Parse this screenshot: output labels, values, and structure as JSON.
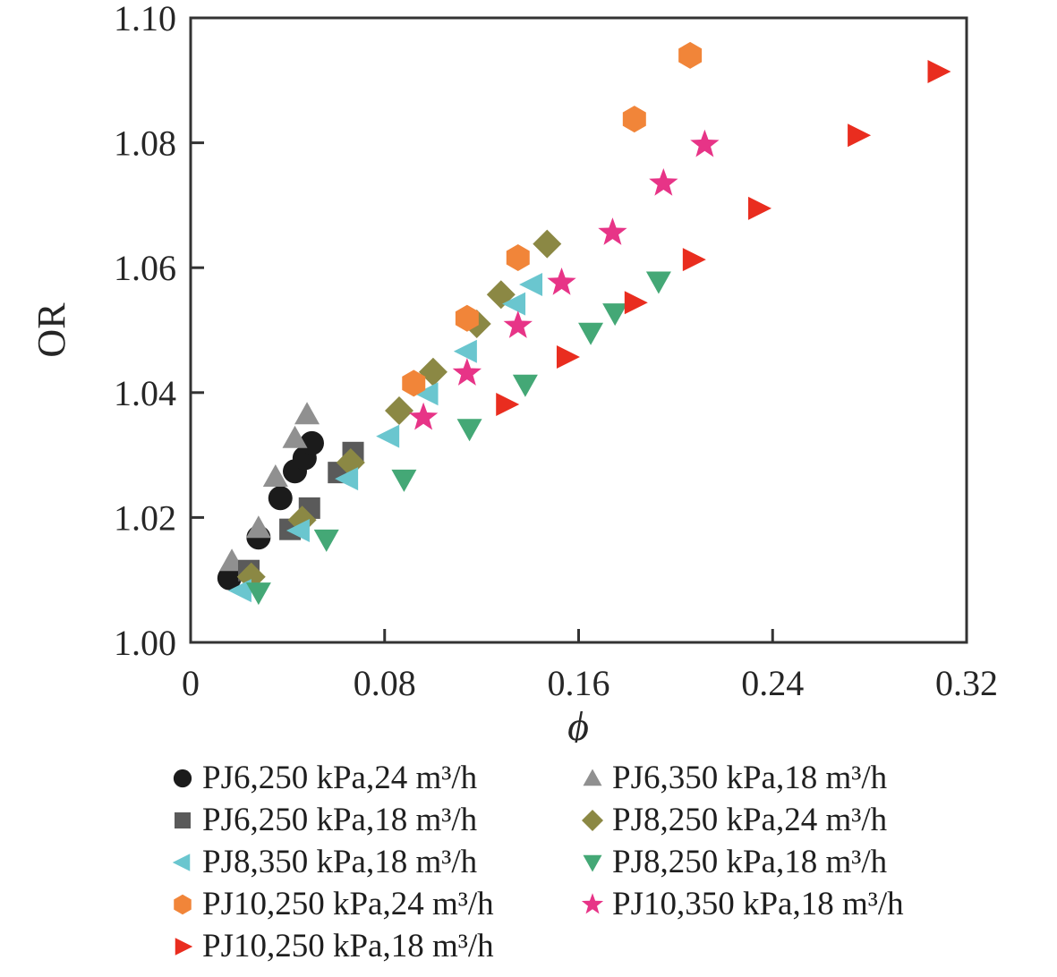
{
  "chart_data": {
    "type": "scatter",
    "title": "",
    "xlabel": "ϕ",
    "ylabel": "OR",
    "xlim": [
      0,
      0.32
    ],
    "ylim": [
      1.0,
      1.1
    ],
    "xticks": [
      0,
      0.08,
      0.16,
      0.24,
      0.32
    ],
    "xtick_labels": [
      "0",
      "0.08",
      "0.16",
      "0.24",
      "0.32"
    ],
    "yticks": [
      1.0,
      1.02,
      1.04,
      1.06,
      1.08,
      1.1
    ],
    "ytick_labels": [
      "1.00",
      "1.02",
      "1.04",
      "1.06",
      "1.08",
      "1.10"
    ],
    "grid": false,
    "legend_position": "below-two-columns",
    "frame_color": "#333333",
    "series": [
      {
        "name": "PJ6,250 kPa,24 m³/h",
        "marker": "circle",
        "color": "#1b1b1b",
        "points": [
          [
            0.016,
            1.0103
          ],
          [
            0.028,
            1.0168
          ],
          [
            0.037,
            1.0231
          ],
          [
            0.043,
            1.0274
          ],
          [
            0.047,
            1.0295
          ],
          [
            0.05,
            1.0319
          ]
        ]
      },
      {
        "name": "PJ6,350 kPa,18 m³/h",
        "marker": "triangle-up",
        "color": "#909090",
        "points": [
          [
            0.017,
            1.013
          ],
          [
            0.028,
            1.0183
          ],
          [
            0.035,
            1.0265
          ],
          [
            0.043,
            1.0327
          ],
          [
            0.048,
            1.0365
          ]
        ]
      },
      {
        "name": "PJ6,250 kPa,18 m³/h",
        "marker": "square",
        "color": "#5a5a5a",
        "points": [
          [
            0.024,
            1.0115
          ],
          [
            0.041,
            1.0181
          ],
          [
            0.049,
            1.0215
          ],
          [
            0.061,
            1.0272
          ],
          [
            0.067,
            1.0304
          ]
        ]
      },
      {
        "name": "PJ8,250 kPa,24 m³/h",
        "marker": "diamond",
        "color": "#8b8844",
        "points": [
          [
            0.025,
            1.0105
          ],
          [
            0.046,
            1.0196
          ],
          [
            0.066,
            1.0288
          ],
          [
            0.086,
            1.0371
          ],
          [
            0.1,
            1.0433
          ],
          [
            0.118,
            1.051
          ],
          [
            0.128,
            1.0557
          ],
          [
            0.147,
            1.0638
          ]
        ]
      },
      {
        "name": "PJ8,350 kPa,18 m³/h",
        "marker": "triangle-left",
        "color": "#6ac6cf",
        "points": [
          [
            0.021,
            1.0083
          ],
          [
            0.045,
            1.0179
          ],
          [
            0.065,
            1.0262
          ],
          [
            0.082,
            1.033
          ],
          [
            0.098,
            1.0398
          ],
          [
            0.114,
            1.0466
          ],
          [
            0.134,
            1.0542
          ],
          [
            0.141,
            1.0573
          ]
        ]
      },
      {
        "name": "PJ8,250 kPa,18 m³/h",
        "marker": "triangle-down",
        "color": "#44a876",
        "points": [
          [
            0.028,
            1.008
          ],
          [
            0.056,
            1.0165
          ],
          [
            0.088,
            1.0261
          ],
          [
            0.115,
            1.0342
          ],
          [
            0.138,
            1.0413
          ],
          [
            0.165,
            1.0496
          ],
          [
            0.175,
            1.0527
          ],
          [
            0.193,
            1.0578
          ]
        ]
      },
      {
        "name": "PJ10,250 kPa,24 m³/h",
        "marker": "hexagon",
        "color": "#f18539",
        "points": [
          [
            0.092,
            1.0415
          ],
          [
            0.114,
            1.0519
          ],
          [
            0.135,
            1.0616
          ],
          [
            0.183,
            1.0838
          ],
          [
            0.206,
            1.094
          ]
        ]
      },
      {
        "name": "PJ10,350 kPa,18 m³/h",
        "marker": "star",
        "color": "#e73487",
        "points": [
          [
            0.096,
            1.036
          ],
          [
            0.114,
            1.0431
          ],
          [
            0.135,
            1.0507
          ],
          [
            0.153,
            1.0576
          ],
          [
            0.174,
            1.0656
          ],
          [
            0.195,
            1.0735
          ],
          [
            0.212,
            1.0797
          ]
        ]
      },
      {
        "name": "PJ10,250 kPa,18 m³/h",
        "marker": "triangle-right",
        "color": "#e92d1f",
        "points": [
          [
            0.13,
            1.0381
          ],
          [
            0.155,
            1.0457
          ],
          [
            0.183,
            1.0544
          ],
          [
            0.207,
            1.0613
          ],
          [
            0.234,
            1.0695
          ],
          [
            0.275,
            1.0812
          ],
          [
            0.308,
            1.0914
          ]
        ]
      }
    ]
  }
}
